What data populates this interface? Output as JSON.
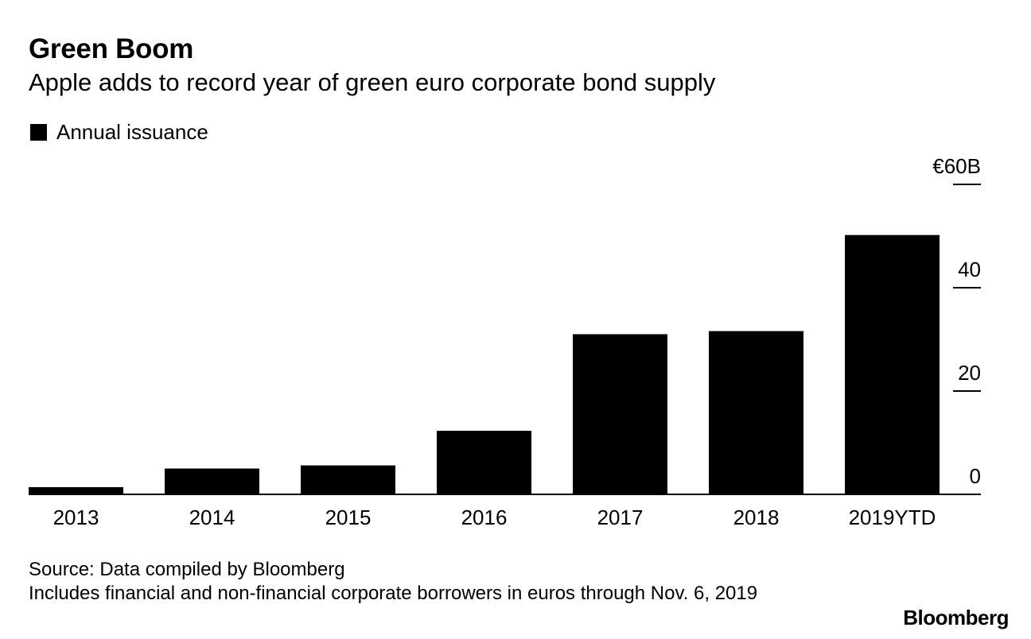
{
  "header": {
    "title": "Green Boom",
    "subtitle": "Apple adds to record year of green euro corporate bond supply"
  },
  "legend": {
    "label": "Annual issuance"
  },
  "chart_data": {
    "type": "bar",
    "title": "Green Boom",
    "subtitle": "Apple adds to record year of green euro corporate bond supply",
    "categories": [
      "2013",
      "2014",
      "2015",
      "2016",
      "2017",
      "2018",
      "2019YTD"
    ],
    "series": [
      {
        "name": "Annual issuance",
        "values": [
          1.4,
          5.0,
          5.6,
          12.3,
          31.0,
          31.6,
          50.2
        ]
      }
    ],
    "ylim": [
      0,
      60
    ],
    "yticks": [
      0,
      20,
      40,
      60
    ],
    "ytick_labels": [
      "0",
      "20",
      "40",
      "€60B"
    ],
    "yaxis_side": "right",
    "xlabel": "",
    "ylabel": "",
    "grid": false,
    "bar_color": "#000000",
    "legend_position": "top-left"
  },
  "footer": {
    "source": "Source: Data compiled by Bloomberg",
    "note": "Includes financial and non-financial corporate borrowers in euros through Nov. 6, 2019"
  },
  "brand": {
    "logo_text": "Bloomberg"
  }
}
